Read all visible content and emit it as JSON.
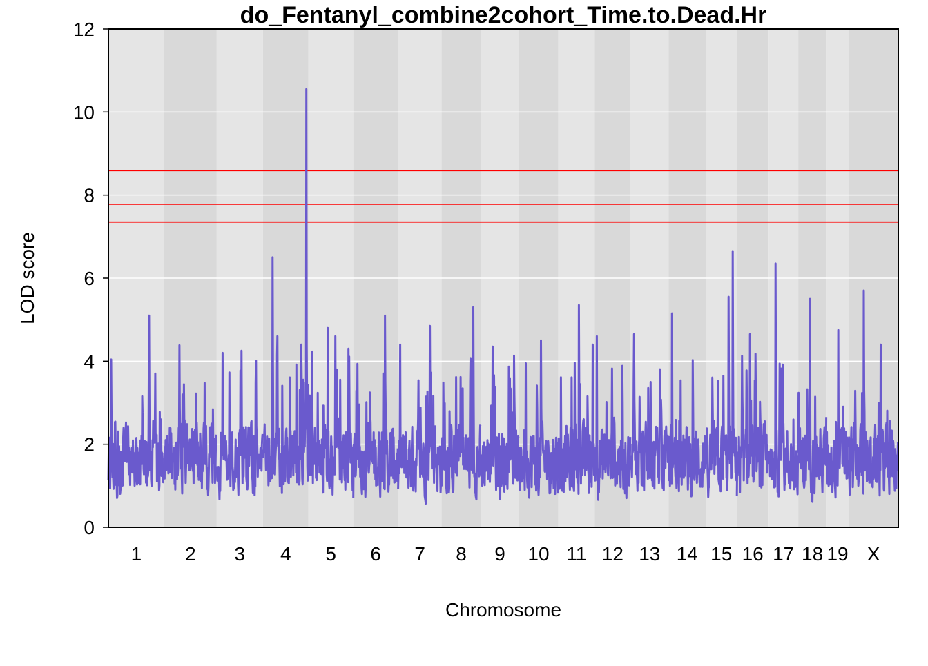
{
  "chart_data": {
    "type": "line",
    "title": "do_Fentanyl_combine2cohort_Time.to.Dead.Hr",
    "xlabel": "Chromosome",
    "ylabel": "LOD score",
    "ylim": [
      0,
      12
    ],
    "y_ticks": [
      "0",
      "2",
      "4",
      "6",
      "8",
      "10",
      "12"
    ],
    "chromosomes": [
      "1",
      "2",
      "3",
      "4",
      "5",
      "6",
      "7",
      "8",
      "9",
      "10",
      "11",
      "12",
      "13",
      "14",
      "15",
      "16",
      "17",
      "18",
      "19",
      "X"
    ],
    "chromosome_bounds": [
      [
        0,
        81
      ],
      [
        81,
        157
      ],
      [
        157,
        224
      ],
      [
        224,
        290
      ],
      [
        290,
        355
      ],
      [
        355,
        420
      ],
      [
        420,
        483
      ],
      [
        483,
        540
      ],
      [
        540,
        595
      ],
      [
        595,
        652
      ],
      [
        652,
        705
      ],
      [
        705,
        757
      ],
      [
        757,
        812
      ],
      [
        812,
        866
      ],
      [
        866,
        911
      ],
      [
        911,
        957
      ],
      [
        957,
        1000
      ],
      [
        1000,
        1041
      ],
      [
        1041,
        1073
      ],
      [
        1073,
        1145
      ]
    ],
    "thresholds": [
      8.59,
      7.78,
      7.35
    ],
    "grid": true,
    "colors": {
      "line": "#6a5acd",
      "threshold": "#ff0000",
      "band_light": "#e5e5e5",
      "band_dark": "#d9d9d9",
      "grid": "#ffffff"
    },
    "peaks": [
      {
        "x": 59,
        "y": 5.1
      },
      {
        "x": 238,
        "y": 6.5
      },
      {
        "x": 245,
        "y": 4.6
      },
      {
        "x": 287,
        "y": 10.55
      },
      {
        "x": 318,
        "y": 4.8
      },
      {
        "x": 329,
        "y": 4.6
      },
      {
        "x": 348,
        "y": 4.3
      },
      {
        "x": 401,
        "y": 5.1
      },
      {
        "x": 466,
        "y": 4.85
      },
      {
        "x": 529,
        "y": 5.3
      },
      {
        "x": 557,
        "y": 4.35
      },
      {
        "x": 627,
        "y": 4.5
      },
      {
        "x": 682,
        "y": 5.35
      },
      {
        "x": 708,
        "y": 4.6
      },
      {
        "x": 762,
        "y": 4.65
      },
      {
        "x": 817,
        "y": 5.15
      },
      {
        "x": 899,
        "y": 5.55
      },
      {
        "x": 905,
        "y": 6.65
      },
      {
        "x": 930,
        "y": 4.65
      },
      {
        "x": 967,
        "y": 6.35
      },
      {
        "x": 1017,
        "y": 5.5
      },
      {
        "x": 1058,
        "y": 4.75
      },
      {
        "x": 1095,
        "y": 5.7
      }
    ]
  }
}
